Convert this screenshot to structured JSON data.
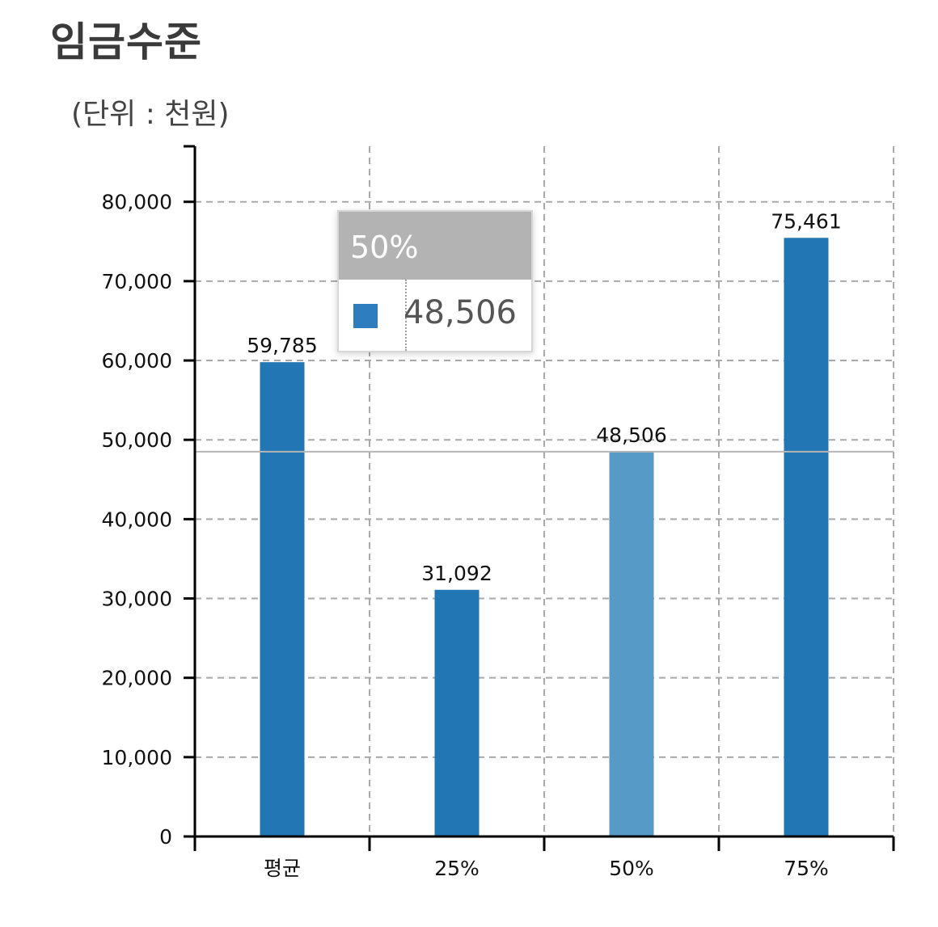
{
  "title": "임금수준",
  "unit_label": "(단위 : 천원)",
  "tooltip": {
    "category": "50%",
    "value": "48,506"
  },
  "colors": {
    "bar": "#2176b3",
    "bar_highlight": "#569bc8",
    "swatch": "#2e7ebf"
  },
  "chart_data": {
    "type": "bar",
    "categories": [
      "평균",
      "25%",
      "50%",
      "75%"
    ],
    "values": [
      59785,
      31092,
      48506,
      75461
    ],
    "value_labels": [
      "59,785",
      "31,092",
      "48,506",
      "75,461"
    ],
    "highlighted_category": "50%",
    "ylim": [
      0,
      87000
    ],
    "yticks": [
      0,
      10000,
      20000,
      30000,
      40000,
      50000,
      60000,
      70000,
      80000
    ],
    "ytick_labels": [
      "0",
      "10,000",
      "20,000",
      "30,000",
      "40,000",
      "50,000",
      "60,000",
      "70,000",
      "80,000"
    ],
    "reference_line": 48506,
    "grid": true,
    "legend": "none"
  }
}
